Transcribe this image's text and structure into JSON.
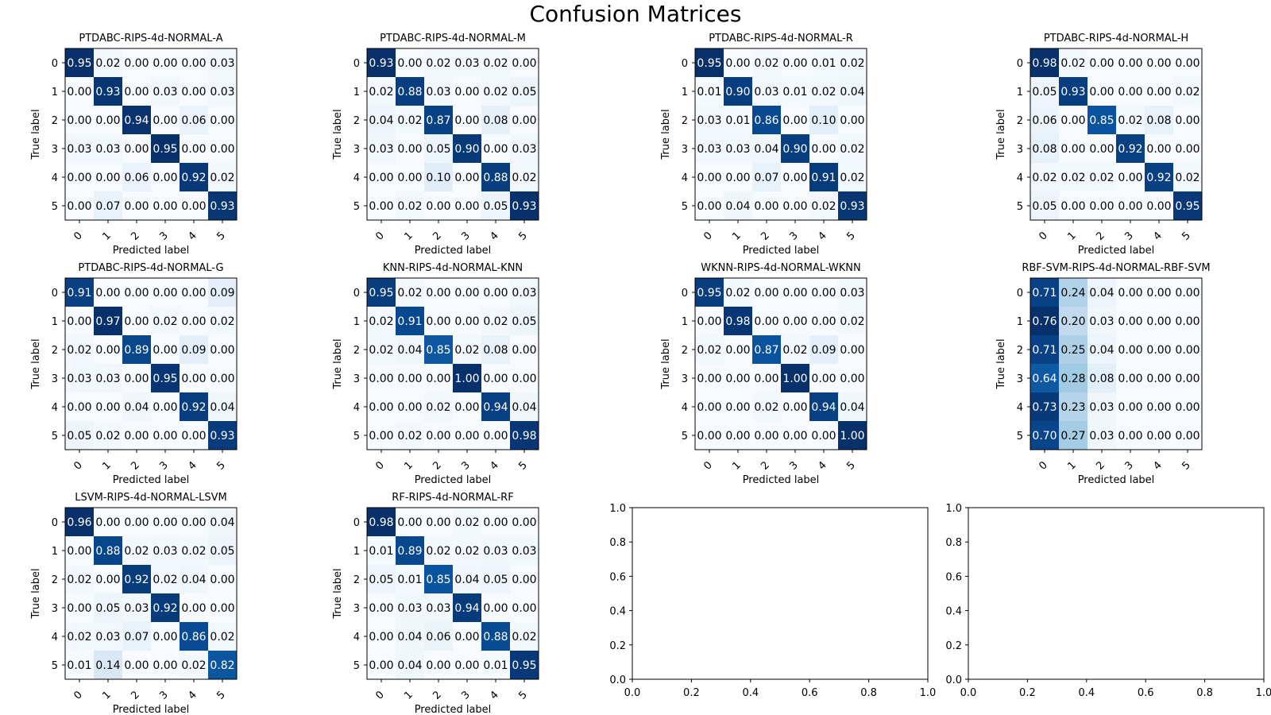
{
  "figure": {
    "title": "Confusion Matrices"
  },
  "chart_data": [
    {
      "type": "heatmap",
      "title": "PTDABC-RIPS-4d-NORMAL-A",
      "xlabel": "Predicted label",
      "ylabel": "True label",
      "x_ticks": [
        "0",
        "1",
        "2",
        "3",
        "4",
        "5"
      ],
      "y_ticks": [
        "0",
        "1",
        "2",
        "3",
        "4",
        "5"
      ],
      "colormap": "Blues",
      "matrix": [
        [
          0.95,
          0.02,
          0.0,
          0.0,
          0.0,
          0.03
        ],
        [
          0.0,
          0.93,
          0.0,
          0.03,
          0.0,
          0.03
        ],
        [
          0.0,
          0.0,
          0.94,
          0.0,
          0.06,
          0.0
        ],
        [
          0.03,
          0.03,
          0.0,
          0.95,
          0.0,
          0.0
        ],
        [
          0.0,
          0.0,
          0.06,
          0.0,
          0.92,
          0.02
        ],
        [
          0.0,
          0.07,
          0.0,
          0.0,
          0.0,
          0.93
        ]
      ]
    },
    {
      "type": "heatmap",
      "title": "PTDABC-RIPS-4d-NORMAL-M",
      "xlabel": "Predicted label",
      "ylabel": "True label",
      "x_ticks": [
        "0",
        "1",
        "2",
        "3",
        "4",
        "5"
      ],
      "y_ticks": [
        "0",
        "1",
        "2",
        "3",
        "4",
        "5"
      ],
      "colormap": "Blues",
      "matrix": [
        [
          0.93,
          0.0,
          0.02,
          0.03,
          0.02,
          0.0
        ],
        [
          0.02,
          0.88,
          0.03,
          0.0,
          0.02,
          0.05
        ],
        [
          0.04,
          0.02,
          0.87,
          0.0,
          0.08,
          0.0
        ],
        [
          0.03,
          0.0,
          0.05,
          0.9,
          0.0,
          0.03
        ],
        [
          0.0,
          0.0,
          0.1,
          0.0,
          0.88,
          0.02
        ],
        [
          0.0,
          0.02,
          0.0,
          0.0,
          0.05,
          0.93
        ]
      ]
    },
    {
      "type": "heatmap",
      "title": "PTDABC-RIPS-4d-NORMAL-R",
      "xlabel": "Predicted label",
      "ylabel": "True label",
      "x_ticks": [
        "0",
        "1",
        "2",
        "3",
        "4",
        "5"
      ],
      "y_ticks": [
        "0",
        "1",
        "2",
        "3",
        "4",
        "5"
      ],
      "colormap": "Blues",
      "matrix": [
        [
          0.95,
          0.0,
          0.02,
          0.0,
          0.01,
          0.02
        ],
        [
          0.01,
          0.9,
          0.03,
          0.01,
          0.02,
          0.04
        ],
        [
          0.03,
          0.01,
          0.86,
          0.0,
          0.1,
          0.0
        ],
        [
          0.03,
          0.03,
          0.04,
          0.9,
          0.0,
          0.02
        ],
        [
          0.0,
          0.0,
          0.07,
          0.0,
          0.91,
          0.02
        ],
        [
          0.0,
          0.04,
          0.0,
          0.0,
          0.02,
          0.93
        ]
      ]
    },
    {
      "type": "heatmap",
      "title": "PTDABC-RIPS-4d-NORMAL-H",
      "xlabel": "Predicted label",
      "ylabel": "True label",
      "x_ticks": [
        "0",
        "1",
        "2",
        "3",
        "4",
        "5"
      ],
      "y_ticks": [
        "0",
        "1",
        "2",
        "3",
        "4",
        "5"
      ],
      "colormap": "Blues",
      "matrix": [
        [
          0.98,
          0.02,
          0.0,
          0.0,
          0.0,
          0.0
        ],
        [
          0.05,
          0.93,
          0.0,
          0.0,
          0.0,
          0.02
        ],
        [
          0.06,
          0.0,
          0.85,
          0.02,
          0.08,
          0.0
        ],
        [
          0.08,
          0.0,
          0.0,
          0.92,
          0.0,
          0.0
        ],
        [
          0.02,
          0.02,
          0.02,
          0.0,
          0.92,
          0.02
        ],
        [
          0.05,
          0.0,
          0.0,
          0.0,
          0.0,
          0.95
        ]
      ]
    },
    {
      "type": "heatmap",
      "title": "PTDABC-RIPS-4d-NORMAL-G",
      "xlabel": "Predicted label",
      "ylabel": "True label",
      "x_ticks": [
        "0",
        "1",
        "2",
        "3",
        "4",
        "5"
      ],
      "y_ticks": [
        "0",
        "1",
        "2",
        "3",
        "4",
        "5"
      ],
      "colormap": "Blues",
      "matrix": [
        [
          0.91,
          0.0,
          0.0,
          0.0,
          0.0,
          0.09
        ],
        [
          0.0,
          0.97,
          0.0,
          0.02,
          0.0,
          0.02
        ],
        [
          0.02,
          0.0,
          0.89,
          0.0,
          0.09,
          0.0
        ],
        [
          0.03,
          0.03,
          0.0,
          0.95,
          0.0,
          0.0
        ],
        [
          0.0,
          0.0,
          0.04,
          0.0,
          0.92,
          0.04
        ],
        [
          0.05,
          0.02,
          0.0,
          0.0,
          0.0,
          0.93
        ]
      ]
    },
    {
      "type": "heatmap",
      "title": "KNN-RIPS-4d-NORMAL-KNN",
      "xlabel": "Predicted label",
      "ylabel": "True label",
      "x_ticks": [
        "0",
        "1",
        "2",
        "3",
        "4",
        "5"
      ],
      "y_ticks": [
        "0",
        "1",
        "2",
        "3",
        "4",
        "5"
      ],
      "colormap": "Blues",
      "matrix": [
        [
          0.95,
          0.02,
          0.0,
          0.0,
          0.0,
          0.03
        ],
        [
          0.02,
          0.91,
          0.0,
          0.0,
          0.02,
          0.05
        ],
        [
          0.02,
          0.04,
          0.85,
          0.02,
          0.08,
          0.0
        ],
        [
          0.0,
          0.0,
          0.0,
          1.0,
          0.0,
          0.0
        ],
        [
          0.0,
          0.0,
          0.02,
          0.0,
          0.94,
          0.04
        ],
        [
          0.0,
          0.02,
          0.0,
          0.0,
          0.0,
          0.98
        ]
      ]
    },
    {
      "type": "heatmap",
      "title": "WKNN-RIPS-4d-NORMAL-WKNN",
      "xlabel": "Predicted label",
      "ylabel": "True label",
      "x_ticks": [
        "0",
        "1",
        "2",
        "3",
        "4",
        "5"
      ],
      "y_ticks": [
        "0",
        "1",
        "2",
        "3",
        "4",
        "5"
      ],
      "colormap": "Blues",
      "matrix": [
        [
          0.95,
          0.02,
          0.0,
          0.0,
          0.0,
          0.03
        ],
        [
          0.0,
          0.98,
          0.0,
          0.0,
          0.0,
          0.02
        ],
        [
          0.02,
          0.0,
          0.87,
          0.02,
          0.09,
          0.0
        ],
        [
          0.0,
          0.0,
          0.0,
          1.0,
          0.0,
          0.0
        ],
        [
          0.0,
          0.0,
          0.02,
          0.0,
          0.94,
          0.04
        ],
        [
          0.0,
          0.0,
          0.0,
          0.0,
          0.0,
          1.0
        ]
      ]
    },
    {
      "type": "heatmap",
      "title": "RBF-SVM-RIPS-4d-NORMAL-RBF-SVM",
      "xlabel": "Predicted label",
      "ylabel": "True label",
      "x_ticks": [
        "0",
        "1",
        "2",
        "3",
        "4",
        "5"
      ],
      "y_ticks": [
        "0",
        "1",
        "2",
        "3",
        "4",
        "5"
      ],
      "colormap": "Blues",
      "matrix": [
        [
          0.71,
          0.24,
          0.04,
          0.0,
          0.0,
          0.0
        ],
        [
          0.76,
          0.2,
          0.03,
          0.0,
          0.0,
          0.0
        ],
        [
          0.71,
          0.25,
          0.04,
          0.0,
          0.0,
          0.0
        ],
        [
          0.64,
          0.28,
          0.08,
          0.0,
          0.0,
          0.0
        ],
        [
          0.73,
          0.23,
          0.03,
          0.0,
          0.0,
          0.0
        ],
        [
          0.7,
          0.27,
          0.03,
          0.0,
          0.0,
          0.0
        ]
      ]
    },
    {
      "type": "heatmap",
      "title": "LSVM-RIPS-4d-NORMAL-LSVM",
      "xlabel": "Predicted label",
      "ylabel": "True label",
      "x_ticks": [
        "0",
        "1",
        "2",
        "3",
        "4",
        "5"
      ],
      "y_ticks": [
        "0",
        "1",
        "2",
        "3",
        "4",
        "5"
      ],
      "colormap": "Blues",
      "matrix": [
        [
          0.96,
          0.0,
          0.0,
          0.0,
          0.0,
          0.04
        ],
        [
          0.0,
          0.88,
          0.02,
          0.03,
          0.02,
          0.05
        ],
        [
          0.02,
          0.0,
          0.92,
          0.02,
          0.04,
          0.0
        ],
        [
          0.0,
          0.05,
          0.03,
          0.92,
          0.0,
          0.0
        ],
        [
          0.02,
          0.03,
          0.07,
          0.0,
          0.86,
          0.02
        ],
        [
          0.01,
          0.14,
          0.0,
          0.0,
          0.02,
          0.82
        ]
      ]
    },
    {
      "type": "heatmap",
      "title": "RF-RIPS-4d-NORMAL-RF",
      "xlabel": "Predicted label",
      "ylabel": "True label",
      "x_ticks": [
        "0",
        "1",
        "2",
        "3",
        "4",
        "5"
      ],
      "y_ticks": [
        "0",
        "1",
        "2",
        "3",
        "4",
        "5"
      ],
      "colormap": "Blues",
      "matrix": [
        [
          0.98,
          0.0,
          0.0,
          0.02,
          0.0,
          0.0
        ],
        [
          0.01,
          0.89,
          0.02,
          0.02,
          0.03,
          0.03
        ],
        [
          0.05,
          0.01,
          0.85,
          0.04,
          0.05,
          0.0
        ],
        [
          0.0,
          0.03,
          0.03,
          0.94,
          0.0,
          0.0
        ],
        [
          0.0,
          0.04,
          0.06,
          0.0,
          0.88,
          0.02
        ],
        [
          0.0,
          0.04,
          0.0,
          0.0,
          0.01,
          0.95
        ]
      ]
    },
    {
      "type": "empty",
      "x_ticks": [
        "0.0",
        "0.2",
        "0.4",
        "0.6",
        "0.8",
        "1.0"
      ],
      "y_ticks": [
        "0.0",
        "0.2",
        "0.4",
        "0.6",
        "0.8",
        "1.0"
      ],
      "xlim": [
        0,
        1
      ],
      "ylim": [
        0,
        1
      ]
    },
    {
      "type": "empty",
      "x_ticks": [
        "0.0",
        "0.2",
        "0.4",
        "0.6",
        "0.8",
        "1.0"
      ],
      "y_ticks": [
        "0.0",
        "0.2",
        "0.4",
        "0.6",
        "0.8",
        "1.0"
      ],
      "xlim": [
        0,
        1
      ],
      "ylim": [
        0,
        1
      ]
    }
  ]
}
